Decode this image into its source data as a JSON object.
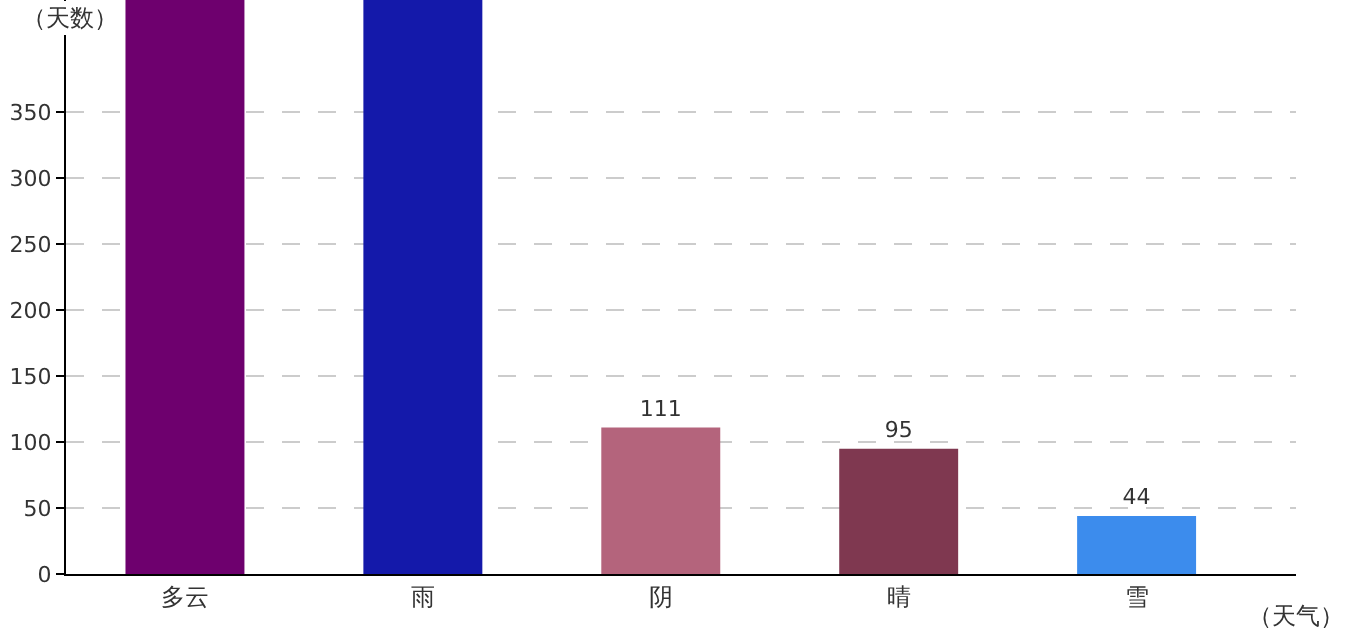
{
  "chart_data": {
    "type": "bar",
    "xlabel": "（天气）",
    "ylabel": "（天数）",
    "categories": [
      "多云",
      "雨",
      "阴",
      "晴",
      "雪"
    ],
    "values": [
      435,
      435,
      111,
      95,
      44
    ],
    "colors": [
      "#6e006e",
      "#1419aa",
      "#b4647c",
      "#7f3850",
      "#3c8ced"
    ],
    "value_labels": [
      null,
      null,
      "111",
      "95",
      "44"
    ],
    "ylim": [
      0,
      435
    ],
    "yticks": [
      0,
      50,
      100,
      150,
      200,
      250,
      300,
      350
    ],
    "grid": "y",
    "legend": false
  }
}
